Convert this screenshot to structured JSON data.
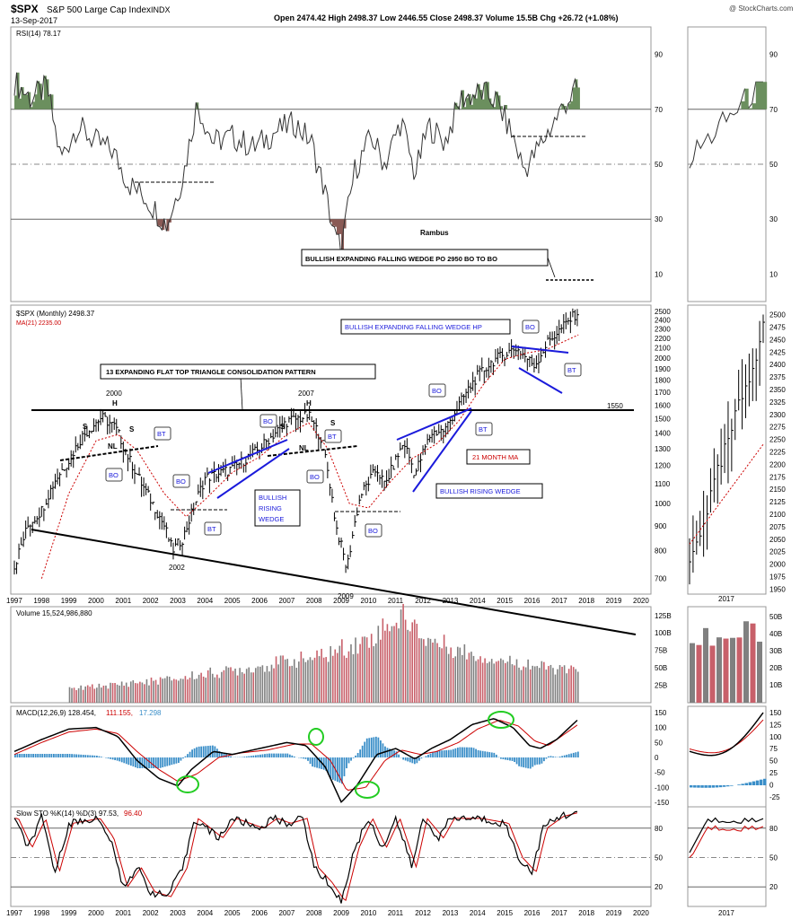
{
  "header": {
    "symbol": "$SPX",
    "name": "S&P 500 Large Cap Index",
    "exchange": "INDX",
    "date": "13-Sep-2017",
    "watermark": "@ StockCharts.com",
    "quote": "Open 2474.42   High 2498.37   Low 2446.55   Close 2498.37   Volume 15.5B   Chg +26.72 (+1.08%)"
  },
  "colors": {
    "up_bar": "#000000",
    "ma_line": "#cc0000",
    "pattern_line": "#1a1adb",
    "rsi_overbought_fill": "#6b8f5e",
    "rsi_oversold_fill": "#8a5a55",
    "vol_up": "#c8606a",
    "vol_down": "#808080",
    "macd_hist": "#3a8ec8",
    "green_circle": "#22cc22"
  },
  "rsi_panel": {
    "legend": "RSI(14) 78.17",
    "ticks": [
      "90",
      "70",
      "50",
      "30",
      "10"
    ],
    "annotation_rambus": "Rambus",
    "box_text": "BULLISH EXPANDING FALLING WEDGE PO 2950 BO TO BO"
  },
  "price_panel": {
    "legend_price": "$SPX (Monthly) 2498.37",
    "legend_ma": "MA(21) 2235.00",
    "ticks": [
      "2500",
      "2400",
      "2300",
      "2200",
      "2100",
      "2000",
      "1900",
      "1800",
      "1700",
      "1600",
      "1500",
      "1400",
      "1300",
      "1200",
      "1100",
      "1000",
      "900",
      "800",
      "700"
    ],
    "right_ticks": [
      "2500",
      "2475",
      "2450",
      "2425",
      "2400",
      "2375",
      "2350",
      "2325",
      "2300",
      "2275",
      "2250",
      "2225",
      "2200",
      "2175",
      "2150",
      "2125",
      "2100",
      "2075",
      "2050",
      "2025",
      "2000",
      "1975",
      "1950"
    ],
    "level_label": "1550",
    "triangle_box": "13 EXPANDING FLAT TOP TRIANGLE CONSOLIDATION PATTERN",
    "wedge_hp_box": "BULLISH EXPANDING FALLING WEDGE HP",
    "ma_label": "21 MONTH MA",
    "rising_wedge_1": [
      "BULLISH",
      "RISING",
      "WEDGE"
    ],
    "rising_wedge_2": "BULLISH RISING WEDGE",
    "year_labels": {
      "y2000": "2000",
      "y2007": "2007",
      "y2002": "2002",
      "y2009": "2009"
    },
    "markers": {
      "h": "H",
      "s": "S",
      "nl": "NL",
      "bo": "BO",
      "bt": "BT"
    }
  },
  "x_axis": {
    "years": [
      "1997",
      "1998",
      "1999",
      "2000",
      "2001",
      "2002",
      "2003",
      "2004",
      "2005",
      "2006",
      "2007",
      "2008",
      "2009",
      "2010",
      "2011",
      "2012",
      "2013",
      "2014",
      "2015",
      "2016",
      "2017",
      "2018",
      "2019",
      "2020"
    ],
    "inset_year": "2017"
  },
  "volume_panel": {
    "legend": "Volume 15,524,986,880",
    "ticks": [
      "125B",
      "100B",
      "75B",
      "50B",
      "25B"
    ],
    "right_ticks": [
      "50B",
      "40B",
      "30B",
      "20B",
      "10B"
    ]
  },
  "macd_panel": {
    "legend_a": "MACD(12,26,9) 128.454,",
    "legend_b": "111.155,",
    "legend_c": "17.298",
    "ticks": [
      "150",
      "100",
      "50",
      "0",
      "-50",
      "-100",
      "-150"
    ],
    "right_ticks": [
      "150",
      "125",
      "100",
      "75",
      "50",
      "25",
      "0",
      "-25"
    ]
  },
  "sto_panel": {
    "legend_a": "Slow STO %K(14) %D(3) 97.53,",
    "legend_b": "96.40",
    "ticks": [
      "80",
      "50",
      "20"
    ]
  },
  "chart_data": {
    "type": "line",
    "title": "$SPX S&P 500 Large Cap Index INDX",
    "x_range": [
      1997,
      2020
    ],
    "price_ylim": [
      650,
      2520
    ],
    "price_points": [
      [
        1997.0,
        740
      ],
      [
        1997.5,
        900
      ],
      [
        1998.0,
        970
      ],
      [
        1998.5,
        1120
      ],
      [
        1999.0,
        1230
      ],
      [
        1999.5,
        1380
      ],
      [
        2000.2,
        1510
      ],
      [
        2000.7,
        1440
      ],
      [
        2001.2,
        1240
      ],
      [
        2001.7,
        1090
      ],
      [
        2002.5,
        900
      ],
      [
        2002.8,
        800
      ],
      [
        2003.2,
        850
      ],
      [
        2003.6,
        990
      ],
      [
        2004.0,
        1130
      ],
      [
        2005.0,
        1180
      ],
      [
        2006.0,
        1300
      ],
      [
        2007.0,
        1480
      ],
      [
        2007.8,
        1520
      ],
      [
        2008.3,
        1350
      ],
      [
        2008.8,
        900
      ],
      [
        2009.2,
        730
      ],
      [
        2009.7,
        1040
      ],
      [
        2010.3,
        1180
      ],
      [
        2010.6,
        1090
      ],
      [
        2011.3,
        1340
      ],
      [
        2011.7,
        1150
      ],
      [
        2012.3,
        1400
      ],
      [
        2012.8,
        1420
      ],
      [
        2013.4,
        1630
      ],
      [
        2014.0,
        1840
      ],
      [
        2014.6,
        1980
      ],
      [
        2015.4,
        2100
      ],
      [
        2015.8,
        2000
      ],
      [
        2016.1,
        1930
      ],
      [
        2016.6,
        2170
      ],
      [
        2017.0,
        2280
      ],
      [
        2017.7,
        2498
      ]
    ],
    "ma21_points": [
      [
        1998.0,
        700
      ],
      [
        1999.0,
        1050
      ],
      [
        2000.0,
        1350
      ],
      [
        2000.8,
        1390
      ],
      [
        2001.5,
        1290
      ],
      [
        2002.5,
        1050
      ],
      [
        2003.3,
        940
      ],
      [
        2004.0,
        1020
      ],
      [
        2005.0,
        1160
      ],
      [
        2006.0,
        1250
      ],
      [
        2007.0,
        1390
      ],
      [
        2007.8,
        1470
      ],
      [
        2008.5,
        1300
      ],
      [
        2009.3,
        1000
      ],
      [
        2010.0,
        980
      ],
      [
        2010.8,
        1110
      ],
      [
        2011.6,
        1240
      ],
      [
        2012.5,
        1330
      ],
      [
        2013.3,
        1480
      ],
      [
        2014.2,
        1760
      ],
      [
        2015.0,
        1990
      ],
      [
        2015.8,
        2050
      ],
      [
        2016.5,
        2080
      ],
      [
        2017.7,
        2235
      ]
    ],
    "rsi_points": [
      [
        1997.0,
        80
      ],
      [
        1997.6,
        74
      ],
      [
        1998.2,
        78
      ],
      [
        1998.7,
        52
      ],
      [
        1999.3,
        64
      ],
      [
        2000.0,
        58
      ],
      [
        2000.6,
        55
      ],
      [
        2001.2,
        43
      ],
      [
        2001.8,
        38
      ],
      [
        2002.6,
        28
      ],
      [
        2003.2,
        46
      ],
      [
        2003.7,
        72
      ],
      [
        2004.3,
        58
      ],
      [
        2005.0,
        60
      ],
      [
        2005.8,
        56
      ],
      [
        2006.6,
        62
      ],
      [
        2007.3,
        65
      ],
      [
        2007.9,
        58
      ],
      [
        2008.4,
        40
      ],
      [
        2008.8,
        22
      ],
      [
        2009.0,
        20
      ],
      [
        2009.5,
        48
      ],
      [
        2010.1,
        60
      ],
      [
        2010.6,
        50
      ],
      [
        2011.2,
        66
      ],
      [
        2011.7,
        46
      ],
      [
        2012.2,
        64
      ],
      [
        2012.8,
        58
      ],
      [
        2013.4,
        74
      ],
      [
        2014.2,
        76
      ],
      [
        2014.7,
        73
      ],
      [
        2015.3,
        60
      ],
      [
        2015.7,
        48
      ],
      [
        2016.0,
        52
      ],
      [
        2016.6,
        62
      ],
      [
        2017.2,
        72
      ],
      [
        2017.7,
        78
      ]
    ],
    "rsi_ylim": [
      0,
      100
    ],
    "volume_ylim": [
      0,
      135
    ],
    "macd_ylim": [
      -165,
      165
    ],
    "macd_points": [
      [
        1997.0,
        20
      ],
      [
        1998.0,
        60
      ],
      [
        1999.0,
        95
      ],
      [
        2000.0,
        100
      ],
      [
        2000.8,
        70
      ],
      [
        2001.5,
        -10
      ],
      [
        2002.3,
        -70
      ],
      [
        2003.0,
        -95
      ],
      [
        2003.5,
        -40
      ],
      [
        2004.3,
        20
      ],
      [
        2005.0,
        10
      ],
      [
        2006.0,
        30
      ],
      [
        2007.0,
        50
      ],
      [
        2007.7,
        40
      ],
      [
        2008.4,
        -30
      ],
      [
        2009.0,
        -150
      ],
      [
        2009.6,
        -90
      ],
      [
        2010.3,
        10
      ],
      [
        2011.0,
        30
      ],
      [
        2011.7,
        -5
      ],
      [
        2012.3,
        30
      ],
      [
        2013.0,
        60
      ],
      [
        2013.8,
        110
      ],
      [
        2014.6,
        130
      ],
      [
        2015.3,
        100
      ],
      [
        2015.9,
        40
      ],
      [
        2016.3,
        30
      ],
      [
        2016.9,
        60
      ],
      [
        2017.7,
        128
      ]
    ],
    "macd_signal_points": [
      [
        1997.0,
        10
      ],
      [
        1998.0,
        50
      ],
      [
        1999.0,
        85
      ],
      [
        2000.0,
        95
      ],
      [
        2000.8,
        80
      ],
      [
        2001.5,
        20
      ],
      [
        2002.3,
        -40
      ],
      [
        2003.0,
        -80
      ],
      [
        2003.7,
        -55
      ],
      [
        2004.5,
        0
      ],
      [
        2005.3,
        15
      ],
      [
        2006.3,
        25
      ],
      [
        2007.3,
        45
      ],
      [
        2007.9,
        45
      ],
      [
        2008.6,
        -10
      ],
      [
        2009.2,
        -110
      ],
      [
        2009.9,
        -100
      ],
      [
        2010.6,
        -10
      ],
      [
        2011.2,
        25
      ],
      [
        2011.9,
        10
      ],
      [
        2012.5,
        20
      ],
      [
        2013.3,
        50
      ],
      [
        2014.0,
        95
      ],
      [
        2014.8,
        125
      ],
      [
        2015.5,
        105
      ],
      [
        2016.1,
        55
      ],
      [
        2016.6,
        40
      ],
      [
        2017.7,
        111
      ]
    ],
    "sto_ylim": [
      0,
      100
    ],
    "sto_points": [
      [
        1997.0,
        90
      ],
      [
        1997.5,
        60
      ],
      [
        1998.0,
        90
      ],
      [
        1998.5,
        35
      ],
      [
        1999.0,
        85
      ],
      [
        2000.0,
        90
      ],
      [
        2000.5,
        70
      ],
      [
        2001.0,
        20
      ],
      [
        2001.5,
        40
      ],
      [
        2002.0,
        15
      ],
      [
        2002.6,
        10
      ],
      [
        2003.2,
        40
      ],
      [
        2003.6,
        90
      ],
      [
        2004.5,
        70
      ],
      [
        2005.0,
        90
      ],
      [
        2006.0,
        80
      ],
      [
        2006.5,
        90
      ],
      [
        2007.0,
        85
      ],
      [
        2007.6,
        90
      ],
      [
        2008.0,
        40
      ],
      [
        2008.5,
        25
      ],
      [
        2009.0,
        5
      ],
      [
        2009.5,
        60
      ],
      [
        2010.0,
        90
      ],
      [
        2010.5,
        60
      ],
      [
        2011.0,
        90
      ],
      [
        2011.6,
        40
      ],
      [
        2012.0,
        90
      ],
      [
        2012.6,
        70
      ],
      [
        2013.0,
        90
      ],
      [
        2014.0,
        90
      ],
      [
        2015.0,
        85
      ],
      [
        2015.5,
        50
      ],
      [
        2016.0,
        35
      ],
      [
        2016.4,
        80
      ],
      [
        2017.0,
        92
      ],
      [
        2017.7,
        97
      ]
    ],
    "volume_values": [
      20,
      22,
      24,
      25,
      26,
      28,
      30,
      30,
      32,
      34,
      35,
      36,
      40,
      42,
      44,
      46,
      48,
      50,
      52,
      55,
      58,
      60,
      62,
      64,
      66,
      70,
      75,
      80,
      85,
      90,
      100,
      110,
      120,
      125,
      110,
      95,
      90,
      85,
      80,
      75,
      70,
      68,
      65,
      62,
      60,
      58,
      55,
      52,
      50,
      48,
      47,
      46
    ]
  }
}
